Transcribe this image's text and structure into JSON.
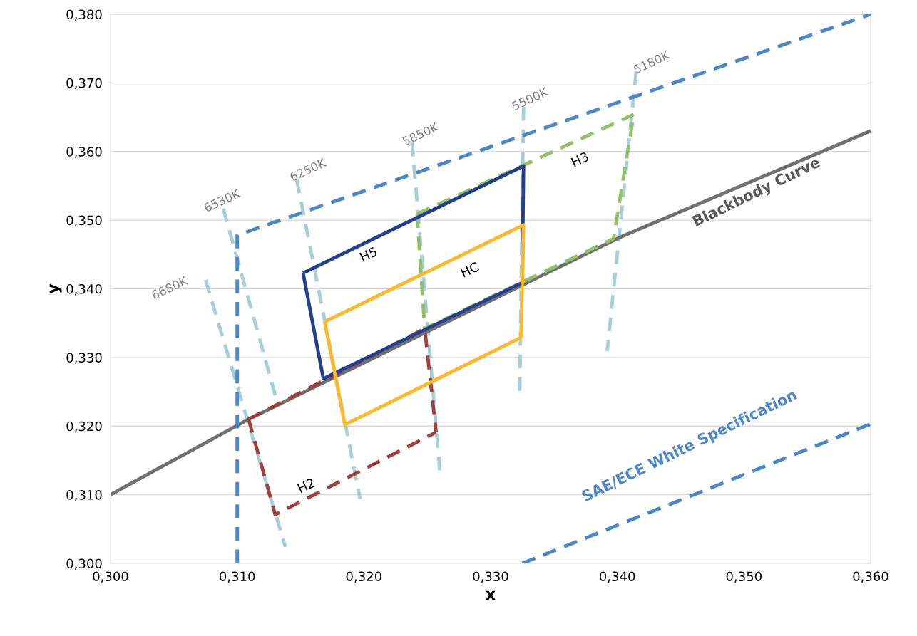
{
  "chart_data": {
    "type": "line",
    "xlabel": "x",
    "ylabel": "y",
    "xlim": [
      0.3,
      0.36
    ],
    "ylim": [
      0.3,
      0.38
    ],
    "xticks": [
      {
        "value": 0.3,
        "label": "0,300"
      },
      {
        "value": 0.31,
        "label": "0,310"
      },
      {
        "value": 0.32,
        "label": "0,320"
      },
      {
        "value": 0.33,
        "label": "0,330"
      },
      {
        "value": 0.34,
        "label": "0,340"
      },
      {
        "value": 0.35,
        "label": "0,350"
      },
      {
        "value": 0.36,
        "label": "0,360"
      }
    ],
    "yticks": [
      {
        "value": 0.3,
        "label": "0,300"
      },
      {
        "value": 0.31,
        "label": "0,310"
      },
      {
        "value": 0.32,
        "label": "0,320"
      },
      {
        "value": 0.33,
        "label": "0,330"
      },
      {
        "value": 0.34,
        "label": "0,340"
      },
      {
        "value": 0.35,
        "label": "0,350"
      },
      {
        "value": 0.36,
        "label": "0,360"
      },
      {
        "value": 0.37,
        "label": "0,370"
      },
      {
        "value": 0.38,
        "label": "0,380"
      }
    ],
    "grid": "y",
    "legend": false,
    "marker": "none",
    "series": [
      {
        "color": "#a8cfd8",
        "line_style": "dashed",
        "x": [
          0.3075,
          0.3138
        ],
        "values": [
          0.3413,
          0.3024
        ]
      },
      {
        "color": "#a8cfd8",
        "line_style": "dashed",
        "x": [
          0.3089,
          0.3132
        ],
        "values": [
          0.3517,
          0.3232
        ]
      },
      {
        "color": "#a8cfd8",
        "line_style": "dashed",
        "x": [
          0.3147,
          0.3197
        ],
        "values": [
          0.3559,
          0.3094
        ]
      },
      {
        "color": "#a8cfd8",
        "line_style": "dashed",
        "x": [
          0.3238,
          0.326
        ],
        "values": [
          0.3613,
          0.3133
        ]
      },
      {
        "color": "#a8cfd8",
        "line_style": "dashed",
        "x": [
          0.3326,
          0.3323
        ],
        "values": [
          0.3665,
          0.325
        ]
      },
      {
        "color": "#a8cfd8",
        "line_style": "dashed",
        "x": [
          0.3415,
          0.3392
        ],
        "values": [
          0.3717,
          0.3309
        ]
      },
      {
        "color": "#707070",
        "line_style": "solid",
        "x": [
          0.3,
          0.3109,
          0.3402,
          0.36
        ],
        "values": [
          0.31,
          0.321,
          0.3475,
          0.363
        ]
      },
      {
        "color": "#4a86c8",
        "line_style": "dashed",
        "x": [
          0.31,
          0.31,
          0.36
        ],
        "values": [
          0.3,
          0.3478,
          0.38
        ]
      },
      {
        "color": "#4a86c8",
        "line_style": "dashed",
        "x": [
          0.3325,
          0.36
        ],
        "values": [
          0.3,
          0.3203
        ]
      },
      {
        "color": "#a0403c",
        "line_style": "dashed",
        "x": [
          0.3109,
          0.3248,
          0.3257
        ],
        "values": [
          0.321,
          0.3342,
          0.3191
        ]
      },
      {
        "color": "#a0403c",
        "line_style": "dashed",
        "x": [
          0.3109,
          0.313,
          0.3257
        ],
        "values": [
          0.321,
          0.3071,
          0.3191
        ]
      },
      {
        "color": "#94c06a",
        "line_style": "dashed",
        "x": [
          0.3242,
          0.3413
        ],
        "values": [
          0.3509,
          0.3654
        ]
      },
      {
        "color": "#94c06a",
        "line_style": "dashed",
        "x": [
          0.3242,
          0.3248,
          0.3397,
          0.3413
        ],
        "values": [
          0.3509,
          0.3342,
          0.3473,
          0.3654
        ]
      },
      {
        "color": "#253f8f",
        "line_style": "solid",
        "x": [
          0.3152,
          0.3326,
          0.3325
        ],
        "values": [
          0.3423,
          0.3579,
          0.3409
        ]
      },
      {
        "color": "#253f8f",
        "line_style": "solid",
        "x": [
          0.3152,
          0.3168,
          0.3325
        ],
        "values": [
          0.3423,
          0.3269,
          0.3409
        ]
      },
      {
        "color": "#fbb929",
        "line_style": "solid",
        "x": [
          0.3169,
          0.3326,
          0.3324
        ],
        "values": [
          0.3352,
          0.3493,
          0.3329
        ]
      },
      {
        "color": "#fbb929",
        "line_style": "solid",
        "x": [
          0.3169,
          0.3185,
          0.3324
        ],
        "values": [
          0.3352,
          0.3202,
          0.3329
        ]
      }
    ],
    "annotations": [
      "6680K",
      "6530K",
      "6250K",
      "5850K",
      "5500K",
      "5180K",
      "H5",
      "HC",
      "H3",
      "H2",
      "Blackbody Curve",
      "SAE/ECE White Specification"
    ]
  }
}
